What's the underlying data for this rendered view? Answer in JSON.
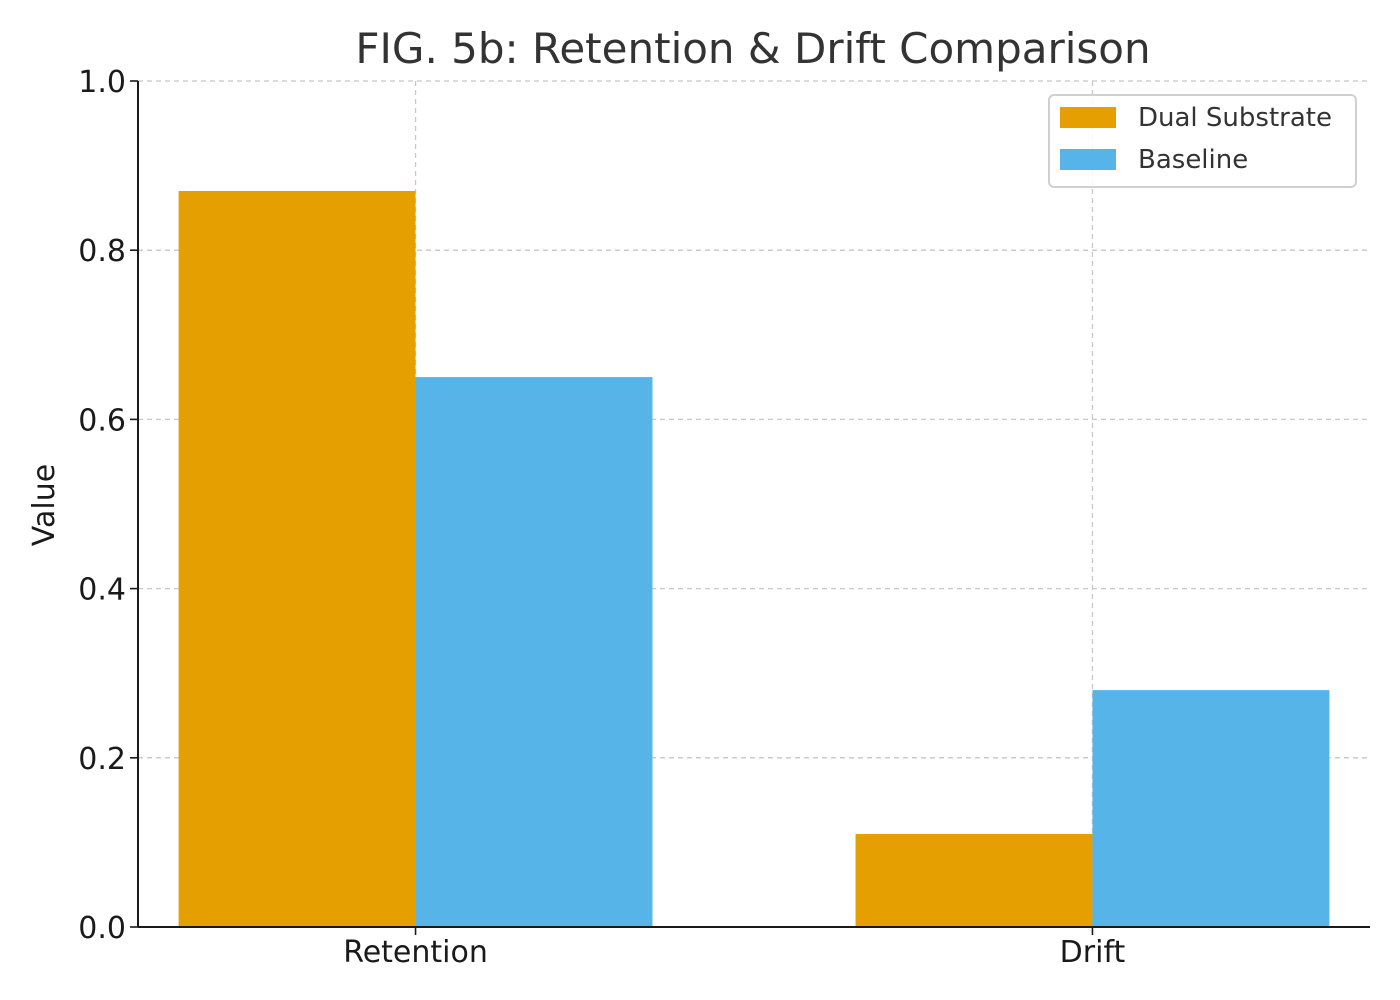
{
  "chart_data": {
    "type": "bar",
    "title": "FIG. 5b: Retention & Drift Comparison",
    "xlabel": "",
    "ylabel": "Value",
    "categories": [
      "Retention",
      "Drift"
    ],
    "series": [
      {
        "name": "Dual Substrate",
        "values": [
          0.87,
          0.11
        ],
        "color": "#E69F00"
      },
      {
        "name": "Baseline",
        "values": [
          0.65,
          0.28
        ],
        "color": "#56B4E9"
      }
    ],
    "ylim": [
      0,
      1.0
    ],
    "yticks": [
      "0.0",
      "0.2",
      "0.4",
      "0.6",
      "0.8",
      "1.0"
    ],
    "grid": true,
    "legend_position": "top-right"
  }
}
